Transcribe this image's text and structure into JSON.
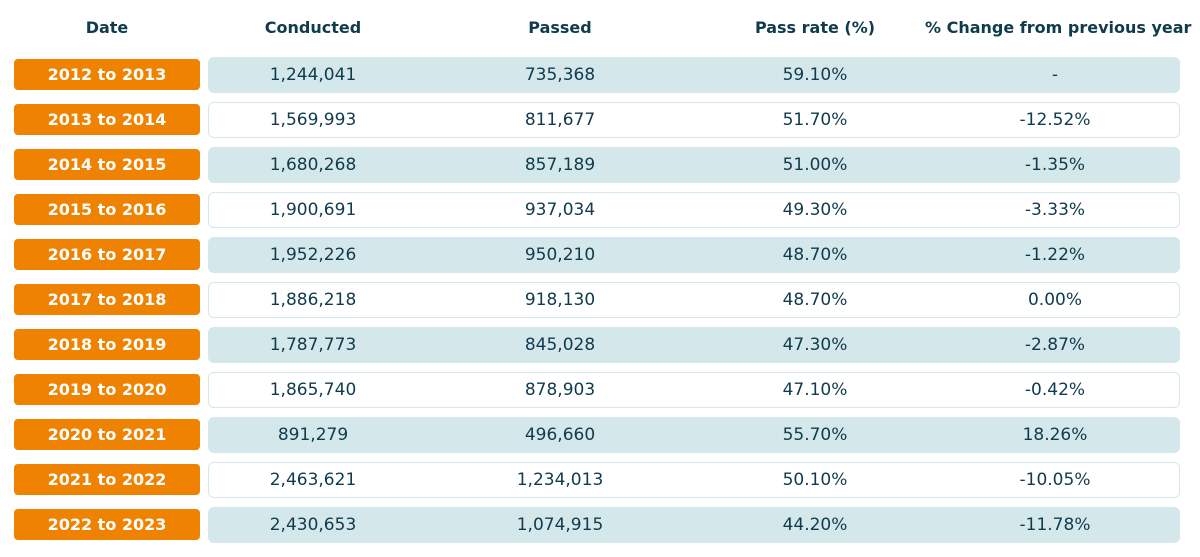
{
  "table": {
    "header": [
      "Date",
      "Conducted",
      "Passed",
      "Pass rate (%)",
      "% Change from previous year"
    ],
    "rows": [
      [
        "2012 to 2013",
        "1,244,041",
        "735,368",
        "59.10%",
        "-"
      ],
      [
        "2013 to 2014",
        "1,569,993",
        "811,677",
        "51.70%",
        "-12.52%"
      ],
      [
        "2014 to 2015",
        "1,680,268",
        "857,189",
        "51.00%",
        "-1.35%"
      ],
      [
        "2015 to 2016",
        "1,900,691",
        "937,034",
        "49.30%",
        "-3.33%"
      ],
      [
        "2016 to 2017",
        "1,952,226",
        "950,210",
        "48.70%",
        "-1.22%"
      ],
      [
        "2017 to 2018",
        "1,886,218",
        "918,130",
        "48.70%",
        "0.00%"
      ],
      [
        "2018 to 2019",
        "1,787,773",
        "845,028",
        "47.30%",
        "-2.87%"
      ],
      [
        "2019 to 2020",
        "1,865,740",
        "878,903",
        "47.10%",
        "-0.42%"
      ],
      [
        "2020 to 2021",
        "891,279",
        "496,660",
        "55.70%",
        "18.26%"
      ],
      [
        "2021 to 2022",
        "2,463,621",
        "1,234,013",
        "50.10%",
        "-10.05%"
      ],
      [
        "2022 to 2023",
        "2,430,653",
        "1,074,915",
        "44.20%",
        "-11.78%"
      ]
    ]
  }
}
